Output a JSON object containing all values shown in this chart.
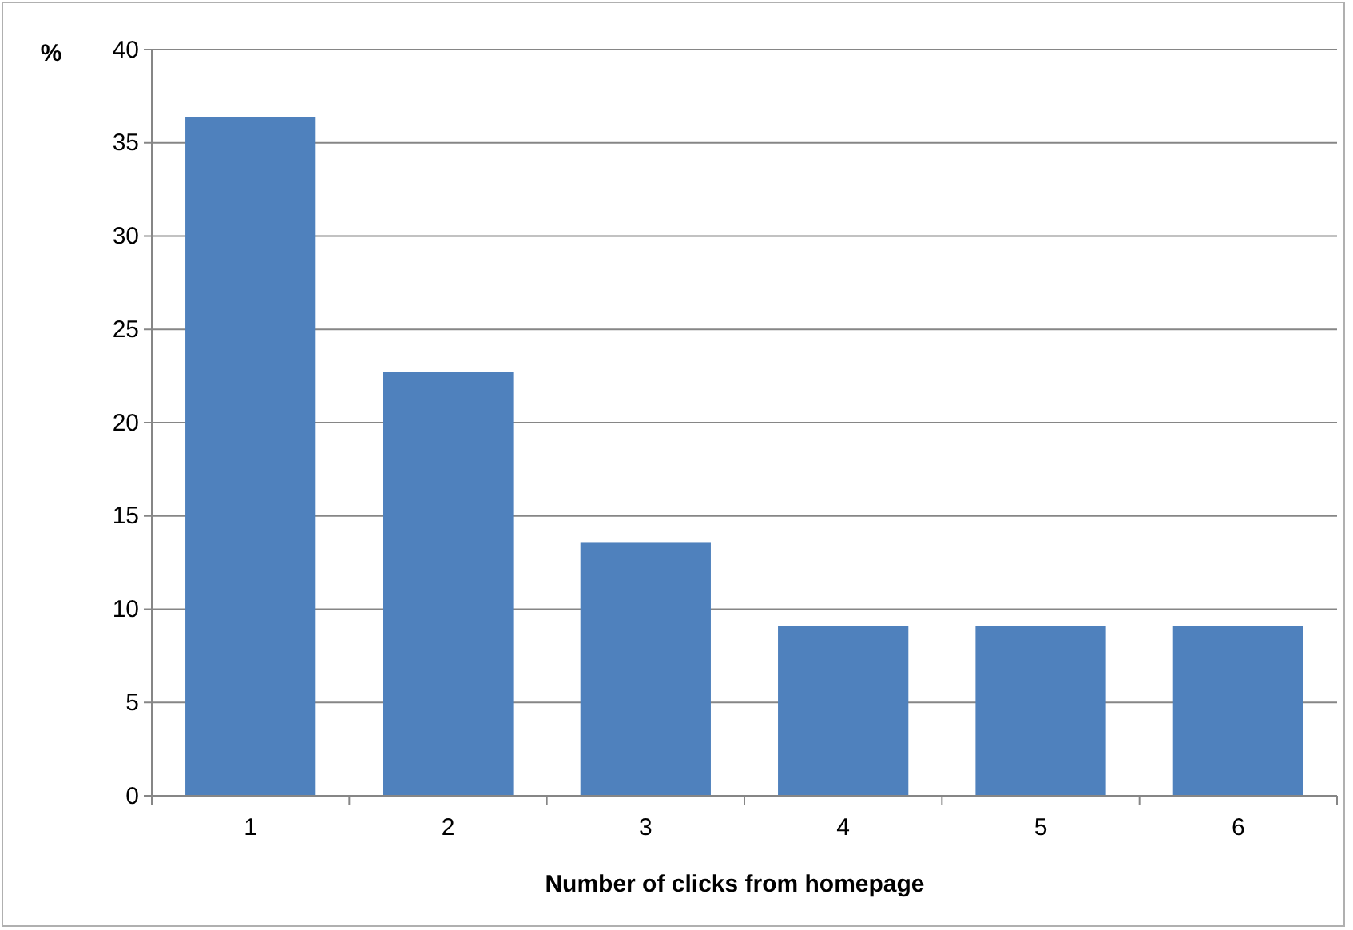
{
  "chart_data": {
    "type": "bar",
    "xlabel": "Number of clicks from homepage",
    "ylabel": "%",
    "categories": [
      "1",
      "2",
      "3",
      "4",
      "5",
      "6"
    ],
    "values": [
      36.4,
      22.7,
      13.6,
      9.1,
      9.1,
      9.1
    ],
    "color": "#4f81bd",
    "ylim": [
      0,
      40
    ],
    "yticks": [
      0,
      5,
      10,
      15,
      20,
      25,
      30,
      35,
      40
    ],
    "grid": "y"
  }
}
